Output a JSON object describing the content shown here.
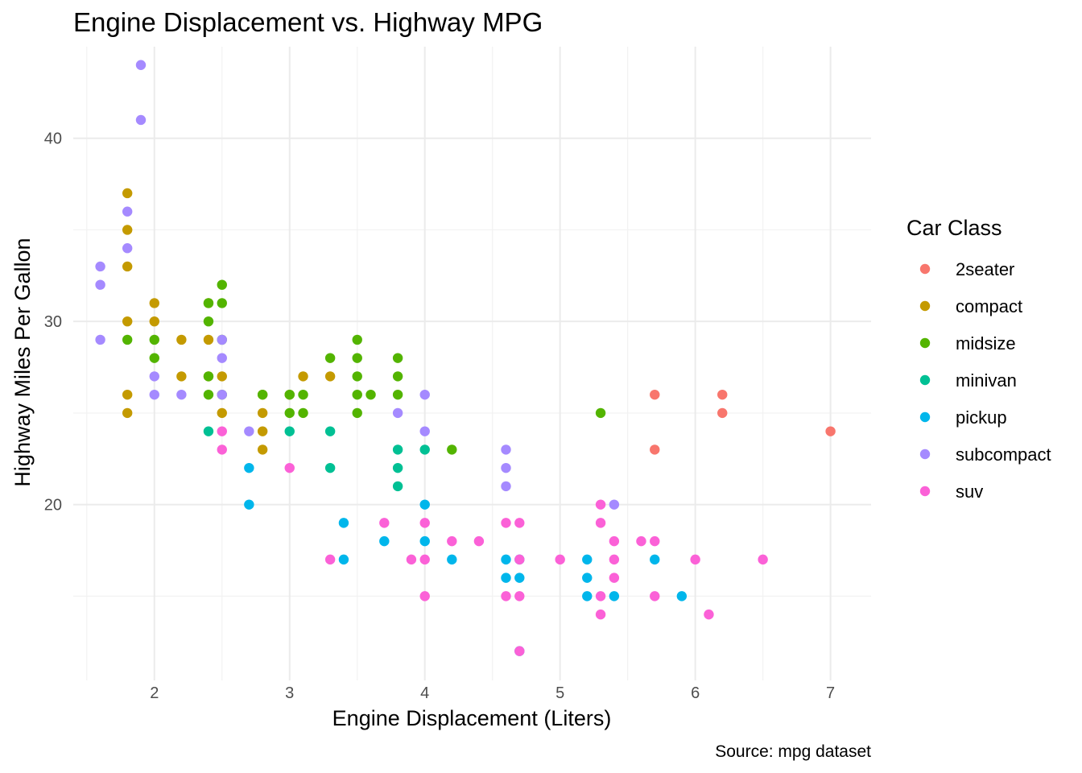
{
  "chart_data": {
    "type": "scatter",
    "title": "Engine Displacement vs. Highway MPG",
    "xlabel": "Engine Displacement (Liters)",
    "ylabel": "Highway Miles Per Gallon",
    "caption": "Source: mpg dataset",
    "xlim": [
      1.4,
      7.3
    ],
    "ylim": [
      10.4,
      45.0
    ],
    "x_ticks": [
      2,
      3,
      4,
      5,
      6,
      7
    ],
    "y_ticks": [
      20,
      30,
      40
    ],
    "grid": true,
    "legend": {
      "title": "Car Class",
      "placement": "right"
    },
    "series": [
      {
        "name": "2seater",
        "color": "#F8766D",
        "points": [
          [
            5.7,
            26
          ],
          [
            5.7,
            23
          ],
          [
            6.2,
            26
          ],
          [
            6.2,
            25
          ],
          [
            7.0,
            24
          ]
        ]
      },
      {
        "name": "compact",
        "color": "#C49A00",
        "points": [
          [
            1.8,
            37
          ],
          [
            1.8,
            35
          ],
          [
            1.8,
            33
          ],
          [
            1.8,
            30
          ],
          [
            1.8,
            26
          ],
          [
            1.8,
            25
          ],
          [
            2.0,
            31
          ],
          [
            2.0,
            30
          ],
          [
            2.2,
            29
          ],
          [
            2.2,
            27
          ],
          [
            2.4,
            31
          ],
          [
            2.4,
            29
          ],
          [
            2.4,
            27
          ],
          [
            2.5,
            27
          ],
          [
            2.5,
            25
          ],
          [
            2.8,
            26
          ],
          [
            2.8,
            25
          ],
          [
            2.8,
            24
          ],
          [
            2.8,
            23
          ],
          [
            3.0,
            26
          ],
          [
            3.1,
            27
          ],
          [
            3.3,
            27
          ]
        ]
      },
      {
        "name": "midsize",
        "color": "#53B400",
        "points": [
          [
            1.8,
            29
          ],
          [
            2.0,
            29
          ],
          [
            2.0,
            28
          ],
          [
            2.4,
            31
          ],
          [
            2.4,
            30
          ],
          [
            2.4,
            27
          ],
          [
            2.4,
            26
          ],
          [
            2.5,
            32
          ],
          [
            2.5,
            31
          ],
          [
            2.5,
            29
          ],
          [
            2.5,
            26
          ],
          [
            2.8,
            26
          ],
          [
            3.0,
            26
          ],
          [
            3.0,
            25
          ],
          [
            3.1,
            26
          ],
          [
            3.1,
            25
          ],
          [
            3.3,
            28
          ],
          [
            3.5,
            29
          ],
          [
            3.5,
            28
          ],
          [
            3.5,
            27
          ],
          [
            3.5,
            26
          ],
          [
            3.5,
            25
          ],
          [
            3.6,
            26
          ],
          [
            3.8,
            28
          ],
          [
            3.8,
            27
          ],
          [
            3.8,
            26
          ],
          [
            4.2,
            23
          ],
          [
            5.3,
            25
          ]
        ]
      },
      {
        "name": "minivan",
        "color": "#00C094",
        "points": [
          [
            2.4,
            24
          ],
          [
            3.0,
            24
          ],
          [
            3.3,
            24
          ],
          [
            3.3,
            22
          ],
          [
            3.8,
            23
          ],
          [
            3.8,
            22
          ],
          [
            3.8,
            21
          ],
          [
            4.0,
            23
          ]
        ]
      },
      {
        "name": "pickup",
        "color": "#00B6EB",
        "points": [
          [
            2.7,
            22
          ],
          [
            2.7,
            20
          ],
          [
            3.4,
            19
          ],
          [
            3.4,
            17
          ],
          [
            3.7,
            18
          ],
          [
            4.0,
            20
          ],
          [
            4.0,
            18
          ],
          [
            4.2,
            17
          ],
          [
            4.6,
            17
          ],
          [
            4.6,
            16
          ],
          [
            4.7,
            17
          ],
          [
            4.7,
            16
          ],
          [
            4.7,
            12
          ],
          [
            5.2,
            17
          ],
          [
            5.2,
            16
          ],
          [
            5.2,
            15
          ],
          [
            5.4,
            15
          ],
          [
            5.7,
            17
          ],
          [
            5.9,
            15
          ]
        ]
      },
      {
        "name": "subcompact",
        "color": "#A58AFF",
        "points": [
          [
            1.6,
            33
          ],
          [
            1.6,
            32
          ],
          [
            1.6,
            29
          ],
          [
            1.8,
            36
          ],
          [
            1.8,
            34
          ],
          [
            1.9,
            44
          ],
          [
            1.9,
            41
          ],
          [
            2.0,
            27
          ],
          [
            2.0,
            26
          ],
          [
            2.2,
            26
          ],
          [
            2.5,
            29
          ],
          [
            2.5,
            28
          ],
          [
            2.5,
            26
          ],
          [
            2.7,
            24
          ],
          [
            3.8,
            25
          ],
          [
            4.0,
            26
          ],
          [
            4.0,
            24
          ],
          [
            4.6,
            23
          ],
          [
            4.6,
            22
          ],
          [
            4.6,
            21
          ],
          [
            5.4,
            20
          ]
        ]
      },
      {
        "name": "suv",
        "color": "#FB61D7",
        "points": [
          [
            2.5,
            24
          ],
          [
            2.5,
            23
          ],
          [
            3.0,
            22
          ],
          [
            3.3,
            17
          ],
          [
            3.7,
            19
          ],
          [
            3.9,
            17
          ],
          [
            4.0,
            19
          ],
          [
            4.0,
            17
          ],
          [
            4.0,
            15
          ],
          [
            4.2,
            18
          ],
          [
            4.4,
            18
          ],
          [
            4.6,
            19
          ],
          [
            4.6,
            15
          ],
          [
            4.7,
            19
          ],
          [
            4.7,
            17
          ],
          [
            4.7,
            15
          ],
          [
            4.7,
            12
          ],
          [
            5.0,
            17
          ],
          [
            5.3,
            20
          ],
          [
            5.3,
            19
          ],
          [
            5.3,
            15
          ],
          [
            5.3,
            14
          ],
          [
            5.4,
            18
          ],
          [
            5.4,
            17
          ],
          [
            5.4,
            16
          ],
          [
            5.6,
            18
          ],
          [
            5.7,
            18
          ],
          [
            5.7,
            15
          ],
          [
            6.0,
            17
          ],
          [
            6.1,
            14
          ],
          [
            6.5,
            17
          ]
        ]
      }
    ]
  }
}
